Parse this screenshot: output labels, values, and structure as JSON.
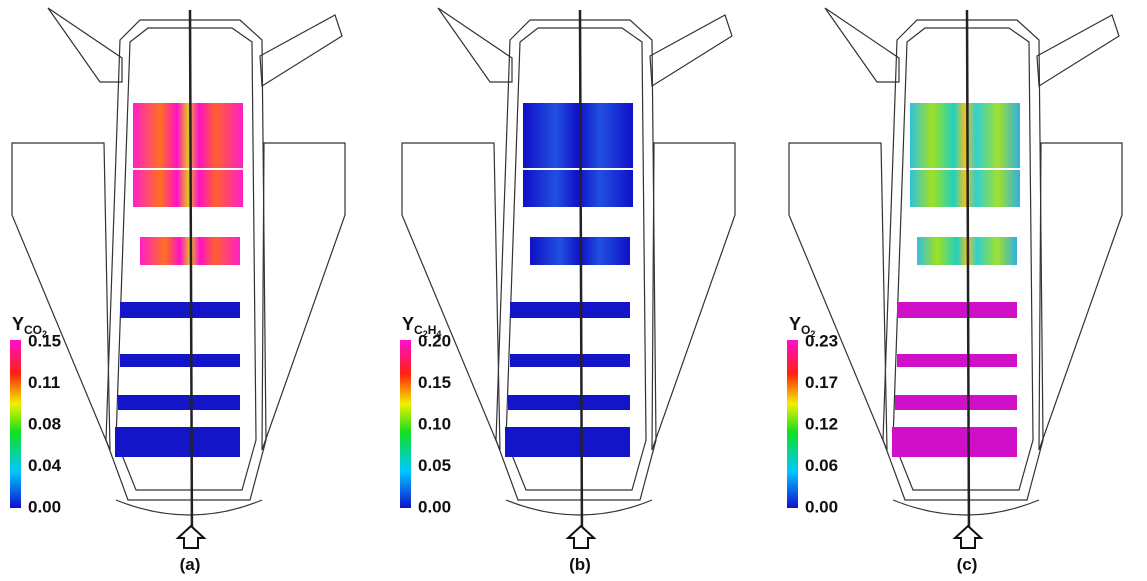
{
  "panels": [
    {
      "label": "(a)",
      "colorbar": {
        "title": [
          "Y",
          "CO",
          "2"
        ],
        "ticks": [
          "0.15",
          "0.11",
          "0.08",
          "0.04",
          "0.00"
        ]
      }
    },
    {
      "label": "(b)",
      "colorbar": {
        "title": [
          "Y",
          "C",
          "2",
          "H",
          "4"
        ],
        "ticks": [
          "0.20",
          "0.15",
          "0.10",
          "0.05",
          "0.00"
        ]
      }
    },
    {
      "label": "(c)",
      "colorbar": {
        "title": [
          "Y",
          "O",
          "2"
        ],
        "ticks": [
          "0.23",
          "0.17",
          "0.12",
          "0.06",
          "0.00"
        ]
      }
    }
  ]
}
